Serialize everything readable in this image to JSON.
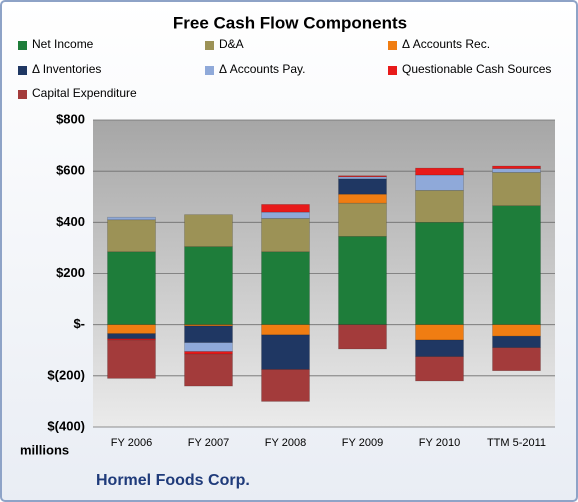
{
  "chart_data": {
    "type": "stacked-bar",
    "title": "Free Cash Flow Components",
    "units_label": "millions",
    "footer": "Hormel Foods Corp.",
    "categories": [
      "FY 2006",
      "FY 2007",
      "FY 2008",
      "FY 2009",
      "FY 2010",
      "TTM 5-2011"
    ],
    "series": [
      {
        "name": "Net Income",
        "color": "#1e7d3a",
        "values": [
          285,
          305,
          285,
          345,
          400,
          465
        ]
      },
      {
        "name": "D&A",
        "color": "#9c9256",
        "values": [
          125,
          125,
          130,
          130,
          125,
          130
        ]
      },
      {
        "name": "Δ Accounts Rec.",
        "color": "#f07d12",
        "values": [
          -35,
          -5,
          -40,
          35,
          -60,
          -45
        ]
      },
      {
        "name": "Δ Inventories",
        "color": "#1f3763",
        "values": [
          -20,
          -65,
          -135,
          60,
          -65,
          -45
        ]
      },
      {
        "name": "Δ Accounts Pay.",
        "color": "#8fa9d9",
        "values": [
          10,
          -35,
          25,
          8,
          60,
          15
        ]
      },
      {
        "name": "Questionable Cash Sources",
        "color": "#e81a1a",
        "values": [
          -5,
          -10,
          30,
          4,
          27,
          10
        ]
      },
      {
        "name": "Capital Expenditure",
        "color": "#a33b3b",
        "values": [
          -150,
          -125,
          -125,
          -95,
          -95,
          -90
        ]
      }
    ],
    "ylim": [
      -400,
      800
    ],
    "yticks": [
      {
        "value": -400,
        "label": "$(400)"
      },
      {
        "value": -200,
        "label": "$(200)"
      },
      {
        "value": 0,
        "label": "$-"
      },
      {
        "value": 200,
        "label": "$200"
      },
      {
        "value": 400,
        "label": "$400"
      },
      {
        "value": 600,
        "label": "$600"
      },
      {
        "value": 800,
        "label": "$800"
      }
    ],
    "grid": true
  }
}
